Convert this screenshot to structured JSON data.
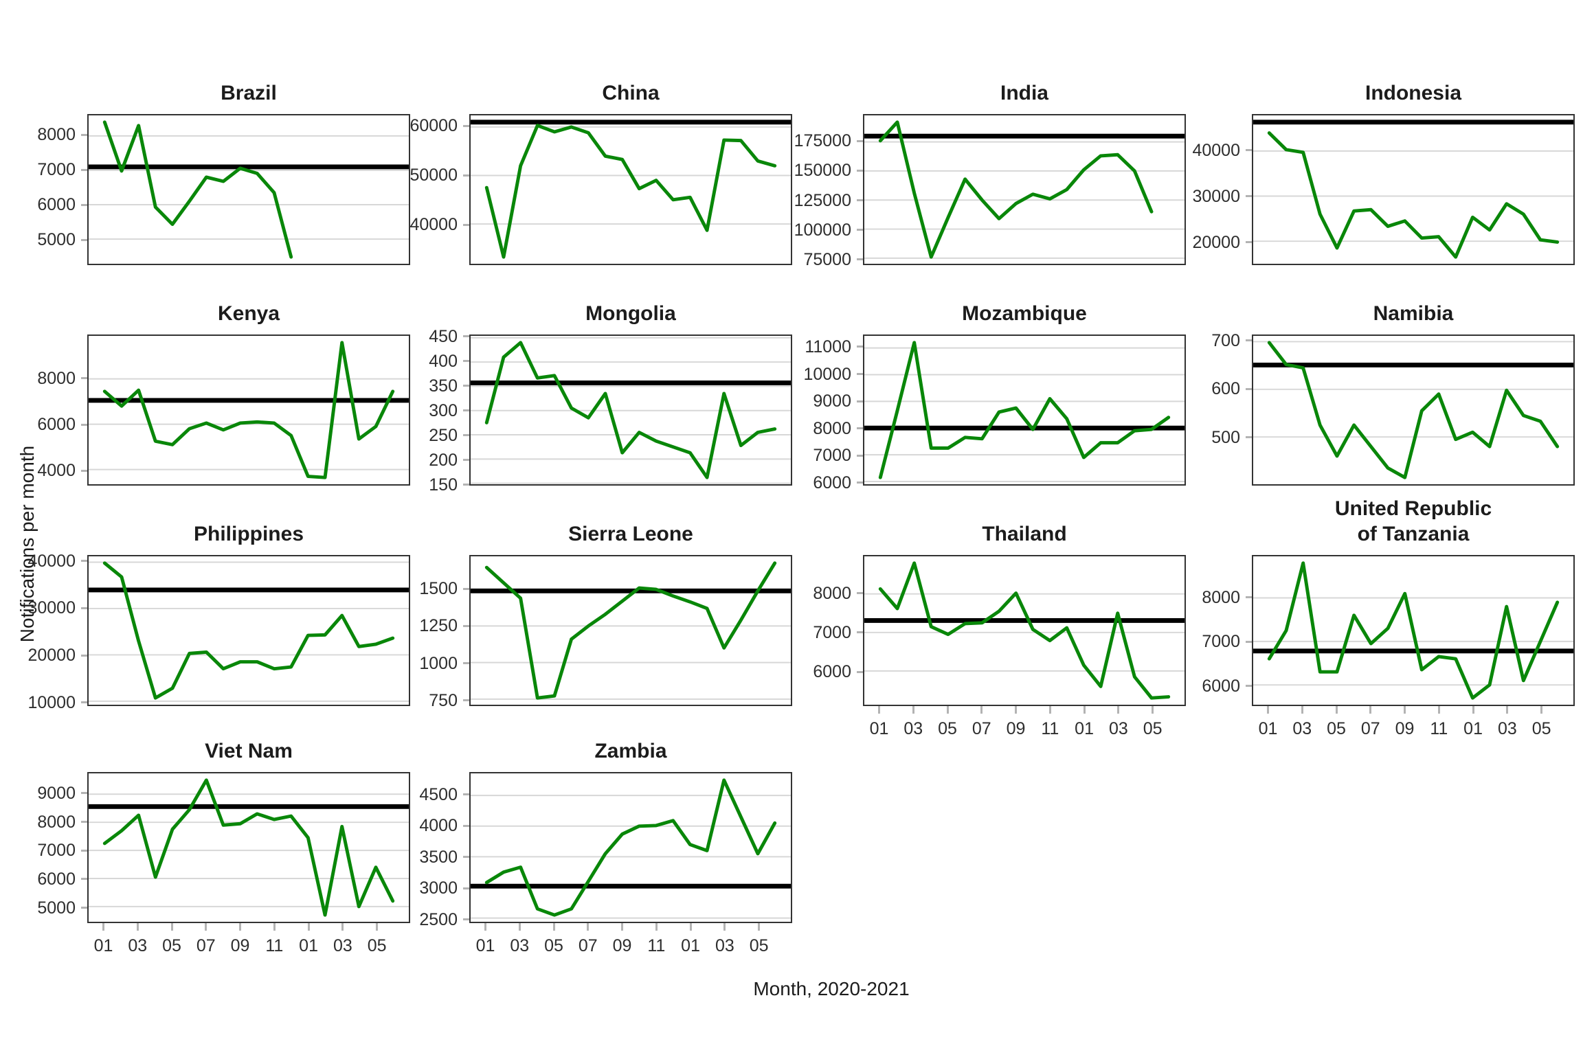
{
  "figure": {
    "y_axis_label": "Notifications per month",
    "x_axis_label": "Month, 2020-2021",
    "x_tick_labels": [
      "01",
      "03",
      "05",
      "07",
      "09",
      "11",
      "01",
      "03",
      "05"
    ],
    "months_span": 18,
    "start_month": "2020-01",
    "line_color": "#098709",
    "baseline_color": "#000000",
    "grid_color": "#d7d7d7",
    "legend": "none",
    "grid": "major-horizontal"
  },
  "chart_data": [
    {
      "type": "line",
      "title": "Brazil",
      "baseline": 7100,
      "yticks": [
        5000,
        6000,
        7000,
        8000
      ],
      "x_labeled": false,
      "values": [
        8400,
        6980,
        8300,
        5930,
        5430,
        6100,
        6800,
        6680,
        7060,
        6910,
        6350,
        4480
      ]
    },
    {
      "type": "line",
      "title": "China",
      "baseline": 61000,
      "yticks": [
        40000,
        50000,
        60000
      ],
      "x_labeled": false,
      "values": [
        47500,
        33200,
        52000,
        60300,
        59000,
        60000,
        58800,
        54000,
        53300,
        47300,
        49000,
        45000,
        45500,
        38700,
        57300,
        57200,
        53000,
        52000
      ]
    },
    {
      "type": "line",
      "title": "India",
      "baseline": 180000,
      "yticks": [
        75000,
        100000,
        125000,
        150000,
        175000
      ],
      "x_labeled": false,
      "values": [
        176000,
        192000,
        131000,
        76000,
        110000,
        143000,
        125000,
        109000,
        122000,
        130000,
        126000,
        134000,
        151000,
        163000,
        164000,
        150000,
        115000
      ]
    },
    {
      "type": "line",
      "title": "Indonesia",
      "baseline": 46400,
      "yticks": [
        20000,
        30000,
        40000
      ],
      "x_labeled": false,
      "values": [
        44000,
        40300,
        39700,
        26000,
        18500,
        26700,
        27000,
        23300,
        24500,
        20700,
        21000,
        16500,
        25300,
        22500,
        28300,
        26000,
        20300,
        19800
      ]
    },
    {
      "type": "line",
      "title": "Kenya",
      "baseline": 7050,
      "yticks": [
        4000,
        6000,
        8000
      ],
      "x_labeled": false,
      "values": [
        7450,
        6800,
        7500,
        5250,
        5100,
        5800,
        6050,
        5750,
        6050,
        6100,
        6050,
        5500,
        3700,
        3650,
        9600,
        5350,
        5900,
        7450
      ]
    },
    {
      "type": "line",
      "title": "Mongolia",
      "baseline": 357,
      "yticks": [
        150,
        200,
        250,
        300,
        350,
        400,
        450
      ],
      "x_labeled": false,
      "values": [
        275,
        410,
        440,
        367,
        372,
        305,
        285,
        335,
        213,
        255,
        237,
        225,
        213,
        162,
        335,
        228,
        255,
        262
      ]
    },
    {
      "type": "line",
      "title": "Mozambique",
      "baseline": 8000,
      "yticks": [
        6000,
        7000,
        8000,
        9000,
        10000,
        11000
      ],
      "x_labeled": false,
      "values": [
        6150,
        8650,
        11200,
        7250,
        7250,
        7650,
        7600,
        8600,
        8750,
        7950,
        9100,
        8350,
        6900,
        7450,
        7450,
        7900,
        7950,
        8400
      ]
    },
    {
      "type": "line",
      "title": "Namibia",
      "baseline": 651,
      "yticks": [
        500,
        600,
        700
      ],
      "x_labeled": false,
      "values": [
        698,
        652,
        645,
        525,
        460,
        525,
        480,
        435,
        415,
        555,
        590,
        495,
        510,
        480,
        598,
        545,
        533,
        480
      ]
    },
    {
      "type": "line",
      "title": "Philippines",
      "baseline": 34000,
      "yticks": [
        10000,
        20000,
        30000,
        40000
      ],
      "x_labeled": false,
      "values": [
        39800,
        36800,
        23000,
        10700,
        12800,
        20300,
        20600,
        17000,
        18500,
        18500,
        17000,
        17400,
        24200,
        24300,
        28500,
        21800,
        22300,
        23600
      ]
    },
    {
      "type": "line",
      "title": "Sierra Leone",
      "baseline": 1490,
      "yticks": [
        750,
        1000,
        1250,
        1500
      ],
      "x_labeled": false,
      "values": [
        1650,
        1545,
        1440,
        758,
        772,
        1160,
        1250,
        1330,
        1420,
        1510,
        1500,
        1455,
        1415,
        1370,
        1100,
        1290,
        1490,
        1680
      ]
    },
    {
      "type": "line",
      "title": "Thailand",
      "baseline": 7310,
      "yticks": [
        6000,
        7000,
        8000
      ],
      "x_labeled": true,
      "values": [
        8130,
        7620,
        8800,
        7150,
        6950,
        7230,
        7250,
        7550,
        8020,
        7080,
        6790,
        7120,
        6150,
        5600,
        7500,
        5850,
        5300,
        5330
      ]
    },
    {
      "type": "line",
      "title": "United Republic of Tanzania",
      "title_lines": [
        "United Republic",
        "of Tanzania"
      ],
      "baseline": 6780,
      "yticks": [
        6000,
        7000,
        8000
      ],
      "x_labeled": true,
      "values": [
        6600,
        7250,
        8800,
        6300,
        6300,
        7600,
        6950,
        7300,
        8100,
        6350,
        6650,
        6600,
        5700,
        6000,
        7800,
        6100,
        7000,
        7900
      ]
    },
    {
      "type": "line",
      "title": "Viet Nam",
      "baseline": 8560,
      "yticks": [
        5000,
        6000,
        7000,
        8000,
        9000
      ],
      "x_labeled": true,
      "values": [
        7250,
        7700,
        8250,
        6050,
        7750,
        8450,
        9500,
        7900,
        7950,
        8300,
        8100,
        8220,
        7450,
        4700,
        7850,
        5000,
        6400,
        5200
      ]
    },
    {
      "type": "line",
      "title": "Zambia",
      "baseline": 3020,
      "yticks": [
        2500,
        3000,
        3500,
        4000,
        4500
      ],
      "x_labeled": true,
      "values": [
        3080,
        3250,
        3330,
        2650,
        2550,
        2650,
        3100,
        3550,
        3870,
        4000,
        4010,
        4090,
        3700,
        3600,
        4750,
        4150,
        3550,
        4050
      ]
    }
  ]
}
